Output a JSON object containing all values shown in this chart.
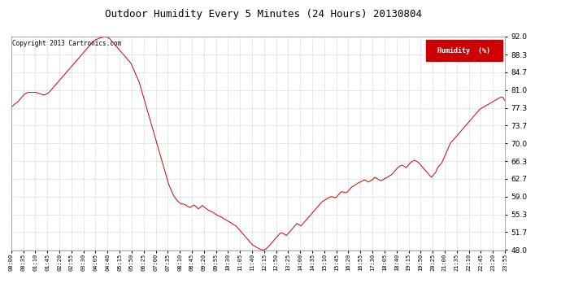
{
  "title": "Outdoor Humidity Every 5 Minutes (24 Hours) 20130804",
  "copyright_text": "Copyright 2013 Cartronics.com",
  "legend_label": "Humidity  (%)",
  "legend_bg": "#cc0000",
  "line_color": "#cc0000",
  "bg_color": "#ffffff",
  "grid_color": "#bbbbbb",
  "ylim": [
    48.0,
    92.0
  ],
  "yticks": [
    48.0,
    51.7,
    55.3,
    59.0,
    62.7,
    66.3,
    70.0,
    73.7,
    77.3,
    81.0,
    84.7,
    88.3,
    92.0
  ],
  "x_tick_labels": [
    "00:00",
    "00:35",
    "01:10",
    "01:45",
    "02:20",
    "02:55",
    "03:30",
    "04:05",
    "04:40",
    "05:15",
    "05:50",
    "06:25",
    "07:00",
    "07:35",
    "08:10",
    "08:45",
    "09:20",
    "09:55",
    "10:30",
    "11:05",
    "11:40",
    "12:15",
    "12:50",
    "13:25",
    "14:00",
    "14:35",
    "15:10",
    "15:45",
    "16:20",
    "16:55",
    "17:30",
    "18:05",
    "18:40",
    "19:15",
    "19:50",
    "20:25",
    "21:00",
    "21:35",
    "22:10",
    "22:45",
    "23:20",
    "23:55"
  ],
  "humidity_values": [
    77.5,
    77.8,
    78.2,
    78.5,
    79.0,
    79.5,
    80.0,
    80.3,
    80.5,
    80.5,
    80.5,
    80.5,
    80.5,
    80.3,
    80.2,
    80.0,
    80.0,
    80.2,
    80.5,
    81.0,
    81.5,
    82.0,
    82.5,
    83.0,
    83.5,
    84.0,
    84.5,
    85.0,
    85.5,
    86.0,
    86.5,
    87.0,
    87.5,
    88.0,
    88.5,
    89.0,
    89.5,
    90.0,
    90.5,
    91.0,
    91.3,
    91.5,
    91.7,
    91.8,
    91.9,
    92.0,
    91.8,
    91.5,
    91.0,
    90.5,
    90.0,
    89.5,
    89.0,
    88.5,
    88.0,
    87.5,
    87.0,
    86.5,
    85.5,
    84.5,
    83.5,
    82.5,
    81.0,
    79.5,
    78.0,
    76.5,
    75.0,
    73.5,
    72.0,
    70.5,
    69.0,
    67.5,
    66.0,
    64.5,
    63.0,
    61.5,
    60.5,
    59.5,
    58.8,
    58.2,
    57.8,
    57.5,
    57.5,
    57.3,
    57.0,
    56.8,
    57.0,
    57.3,
    57.0,
    56.5,
    56.8,
    57.2,
    56.8,
    56.5,
    56.2,
    56.0,
    55.8,
    55.5,
    55.2,
    55.0,
    54.8,
    54.5,
    54.3,
    54.0,
    53.8,
    53.5,
    53.2,
    53.0,
    52.5,
    52.0,
    51.5,
    51.0,
    50.5,
    50.0,
    49.5,
    49.0,
    48.8,
    48.5,
    48.3,
    48.1,
    48.0,
    48.2,
    48.5,
    49.0,
    49.5,
    50.0,
    50.5,
    51.0,
    51.5,
    51.5,
    51.3,
    51.0,
    51.5,
    52.0,
    52.5,
    53.0,
    53.5,
    53.2,
    53.0,
    53.5,
    54.0,
    54.5,
    55.0,
    55.5,
    56.0,
    56.5,
    57.0,
    57.5,
    58.0,
    58.2,
    58.5,
    58.8,
    59.0,
    59.0,
    58.8,
    59.0,
    59.5,
    60.0,
    60.0,
    59.8,
    60.0,
    60.5,
    61.0,
    61.2,
    61.5,
    61.8,
    62.0,
    62.2,
    62.5,
    62.3,
    62.0,
    62.3,
    62.5,
    63.0,
    62.8,
    62.5,
    62.3,
    62.5,
    62.8,
    63.0,
    63.3,
    63.5,
    64.0,
    64.5,
    65.0,
    65.3,
    65.5,
    65.3,
    65.0,
    65.5,
    66.0,
    66.3,
    66.5,
    66.3,
    66.0,
    65.5,
    65.0,
    64.5,
    64.0,
    63.5,
    63.0,
    63.5,
    64.0,
    65.0,
    65.5,
    66.0,
    67.0,
    68.0,
    69.0,
    70.0,
    70.5,
    71.0,
    71.5,
    72.0,
    72.5,
    73.0,
    73.5,
    74.0,
    74.5,
    75.0,
    75.5,
    76.0,
    76.5,
    77.0,
    77.3,
    77.5,
    77.8,
    78.0,
    78.3,
    78.5,
    78.8,
    79.0,
    79.3,
    79.5,
    79.5,
    78.8
  ]
}
